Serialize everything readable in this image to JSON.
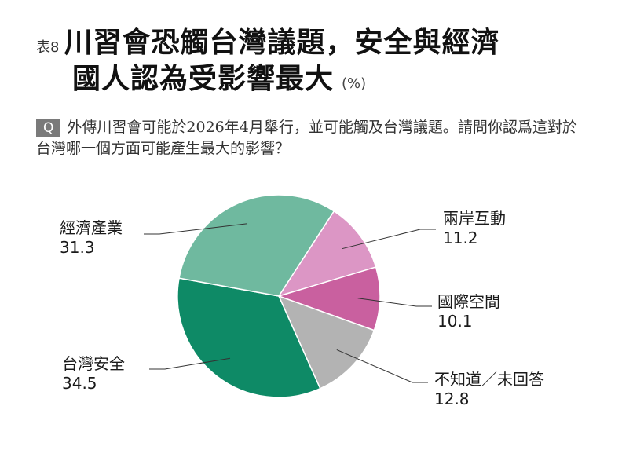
{
  "header": {
    "table_number": "表8",
    "title_line1": "川習會恐觸台灣議題，安全與經濟",
    "title_line2": "國人認為受影響最大",
    "unit": "(%)"
  },
  "question": {
    "badge": "Q",
    "text": "外傳川習會可能於2026年4月舉行，並可能觸及台灣議題。請問你認爲這對於台灣哪一個方面可能產生最大的影響？"
  },
  "chart_data": {
    "type": "pie",
    "title": "川習會恐觸台灣議題，安全與經濟國人認為受影響最大",
    "unit": "%",
    "start": "top-right, clockwise",
    "slices": [
      {
        "label": "兩岸互動",
        "value": 11.2,
        "value_text": "11.2",
        "color": "#dc96c5"
      },
      {
        "label": "國際空間",
        "value": 10.1,
        "value_text": "10.1",
        "color": "#c9609f"
      },
      {
        "label": "不知道／未回答",
        "value": 12.8,
        "value_text": "12.8",
        "color": "#b3b3b3"
      },
      {
        "label": "台灣安全",
        "value": 34.5,
        "value_text": "34.5",
        "color": "#0e8a66"
      },
      {
        "label": "經濟產業",
        "value": 31.3,
        "value_text": "31.3",
        "color": "#6fb99f"
      }
    ]
  }
}
